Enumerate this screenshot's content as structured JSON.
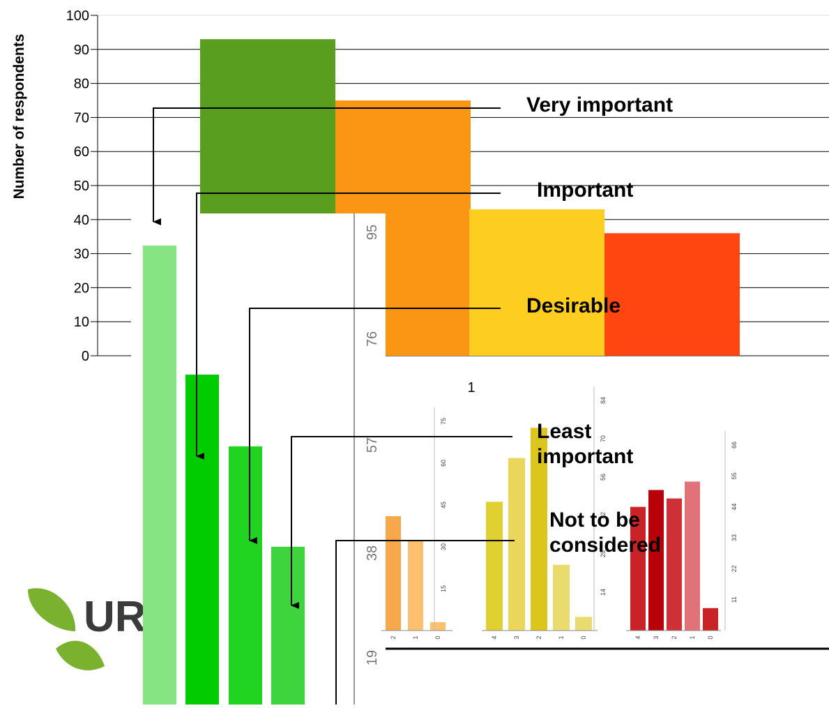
{
  "chart_data": [
    {
      "type": "bar",
      "xlabel": "",
      "ylabel": "Number of respondents",
      "ylim": [
        0,
        100
      ],
      "y_ticks": [
        "0",
        "10",
        "20",
        "30",
        "40",
        "50",
        "60",
        "70",
        "80",
        "90",
        "100"
      ],
      "categories": [
        "1"
      ],
      "series": [
        {
          "name": "Very important",
          "values": [
            93
          ],
          "color": "#5a9e1f"
        },
        {
          "name": "Important",
          "values": [
            75
          ],
          "color": "#fa9613"
        },
        {
          "name": "Desirable",
          "values": [
            43
          ],
          "color": "#fdcd1f"
        },
        {
          "name": "Least important",
          "values": [
            36
          ],
          "color": "#ff4510"
        }
      ],
      "callouts": [
        "Very important",
        "Important",
        "Desirable",
        "Least important",
        "Not to be considered"
      ]
    },
    {
      "type": "bar",
      "values": [
        32,
        23,
        18,
        11
      ],
      "colors": [
        "#86e483",
        "#00cc00",
        "#22d422",
        "#3dd43d"
      ],
      "y_ticks": [
        "19",
        "38",
        "57",
        "76",
        "95"
      ]
    },
    {
      "type": "bar",
      "categories": [
        "2",
        "1",
        "0"
      ],
      "values": [
        41,
        32,
        3
      ],
      "colors": [
        "#f7a84a",
        "#fcc06e",
        "#fcc06e"
      ],
      "y_ticks": [
        "15",
        "30",
        "45",
        "60",
        "75"
      ]
    },
    {
      "type": "bar",
      "categories": [
        "4",
        "3",
        "2",
        "1",
        "0"
      ],
      "values": [
        47,
        63,
        74,
        24,
        5
      ],
      "colors": [
        "#e0d031",
        "#ead65a",
        "#dcc51c",
        "#eadb6f",
        "#eadb6f"
      ],
      "y_ticks": [
        "14",
        "28",
        "42",
        "56",
        "70",
        "84"
      ]
    },
    {
      "type": "bar",
      "categories": [
        "4",
        "3",
        "2",
        "1",
        "0"
      ],
      "values": [
        44,
        50,
        47,
        53,
        8
      ],
      "colors": [
        "#c92327",
        "#b8000a",
        "#cf3038",
        "#e07278",
        "#c92327"
      ],
      "y_ticks": [
        "11",
        "22",
        "33",
        "44",
        "55",
        "66"
      ]
    }
  ],
  "logo_text": "UR",
  "colors": {
    "axis": "#000000",
    "grid": "#000000",
    "minor_axis": "#999999"
  }
}
